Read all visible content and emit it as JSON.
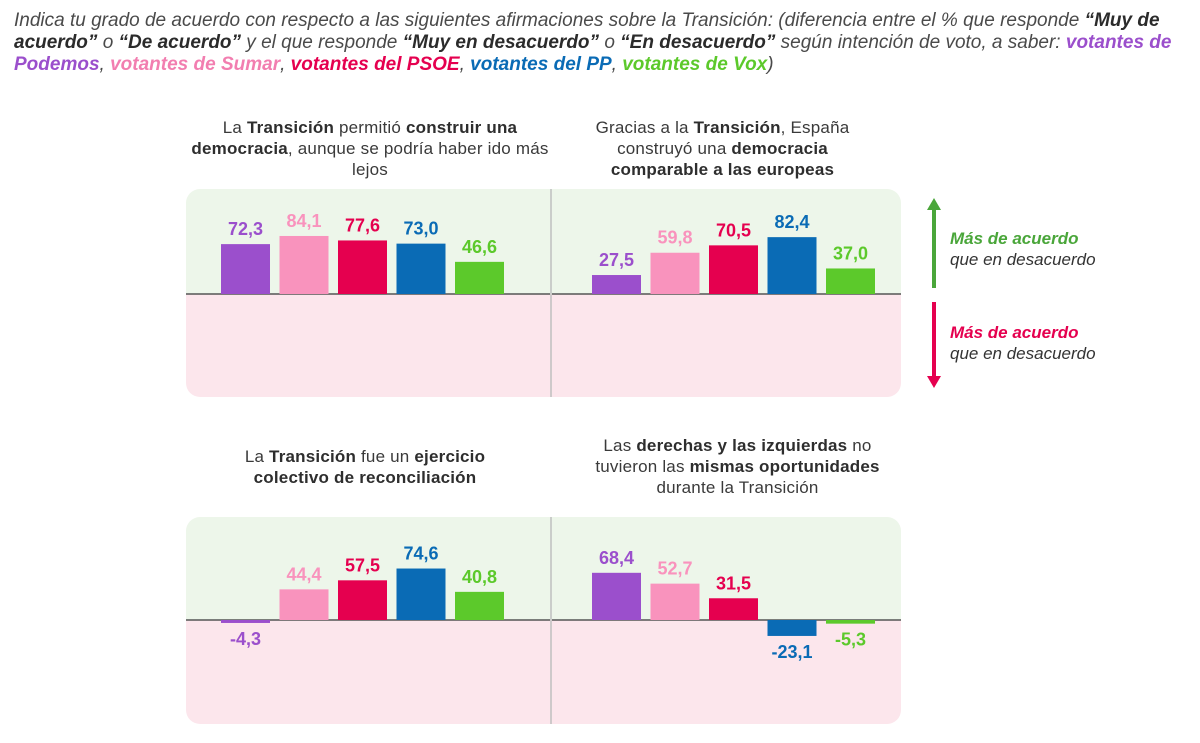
{
  "header": {
    "p1": "Indica tu grado de acuerdo con respecto a las siguientes afirmaciones sobre la Transición: (diferencia entre el % que responde ",
    "b1": "“Muy de acuerdo”",
    "p2": " o ",
    "b2": "“De acuerdo”",
    "p3": " y el que responde ",
    "b3": "“Muy en desacuerdo”",
    "p4": " o ",
    "b4": "“En desacuerdo”",
    "p5": " según intención de voto, a saber: ",
    "podemos": "votantes de Podemos",
    "sep1": ", ",
    "sumar": "votantes de Sumar",
    "sep2": ", ",
    "psoe": "votantes del PSOE",
    "sep3": ", ",
    "pp": "votantes del PP",
    "sep4": ", ",
    "vox": "votantes de Vox",
    "end": ")"
  },
  "titles": {
    "q1": {
      "a": "La ",
      "b": "Transición",
      "c": " permitió ",
      "d": "construir una democracia",
      "e": ", aunque se podría haber ido más lejos"
    },
    "q2": {
      "a": "Gracias a la ",
      "b": "Transición",
      "c": ", España construyó una ",
      "d": "democracia comparable a las europeas"
    },
    "q3": {
      "a": "La ",
      "b": "Transición",
      "c": " fue un ",
      "d": "ejercicio colectivo de reconciliación"
    },
    "q4": {
      "a": "Las ",
      "b": "derechas y las izquierdas",
      "c": " no tuvieron las ",
      "d": "mismas oportunidades",
      "e": " durante la Transición"
    }
  },
  "legend": {
    "up_strong": "Más de acuerdo",
    "up_rest": "que en desacuerdo",
    "down_strong": "Más de acuerdo",
    "down_rest": "que en desacuerdo"
  },
  "colors": {
    "podemos": "#9b4fcc",
    "sumar": "#f993bd",
    "psoe": "#e5004f",
    "pp": "#0a6bb5",
    "vox": "#5cc92b",
    "positive_bg": "#edf6ea",
    "negative_bg": "#fce6ec"
  },
  "chart_data": [
    {
      "type": "bar",
      "title": "La Transición permitió construir una democracia, aunque se podría haber ido más lejos",
      "categories": [
        "votantes de Podemos",
        "votantes de Sumar",
        "votantes del PSOE",
        "votantes del PP",
        "votantes de Vox"
      ],
      "values": [
        72.3,
        84.1,
        77.6,
        73.0,
        46.6
      ],
      "labels": [
        "72,3",
        "84,1",
        "77,6",
        "73,0",
        "46,6"
      ],
      "ylim": [
        -100,
        100
      ]
    },
    {
      "type": "bar",
      "title": "Gracias a la Transición, España construyó una democracia comparable a las europeas",
      "categories": [
        "votantes de Podemos",
        "votantes de Sumar",
        "votantes del PSOE",
        "votantes del PP",
        "votantes de Vox"
      ],
      "values": [
        27.5,
        59.8,
        70.5,
        82.4,
        37.0
      ],
      "labels": [
        "27,5",
        "59,8",
        "70,5",
        "82,4",
        "37,0"
      ],
      "ylim": [
        -100,
        100
      ]
    },
    {
      "type": "bar",
      "title": "La Transición fue un ejercicio colectivo de reconciliación",
      "categories": [
        "votantes de Podemos",
        "votantes de Sumar",
        "votantes del PSOE",
        "votantes del PP",
        "votantes de Vox"
      ],
      "values": [
        -4.3,
        44.4,
        57.5,
        74.6,
        40.8
      ],
      "labels": [
        "-4,3",
        "44,4",
        "57,5",
        "74,6",
        "40,8"
      ],
      "ylim": [
        -100,
        100
      ]
    },
    {
      "type": "bar",
      "title": "Las derechas y las izquierdas no tuvieron las mismas oportunidades durante la Transición",
      "categories": [
        "votantes de Podemos",
        "votantes de Sumar",
        "votantes del PSOE",
        "votantes del PP",
        "votantes de Vox"
      ],
      "values": [
        68.4,
        52.7,
        31.5,
        -23.1,
        -5.3
      ],
      "labels": [
        "68,4",
        "52,7",
        "31,5",
        "-23,1",
        "-5,3"
      ],
      "ylim": [
        -100,
        100
      ]
    }
  ]
}
